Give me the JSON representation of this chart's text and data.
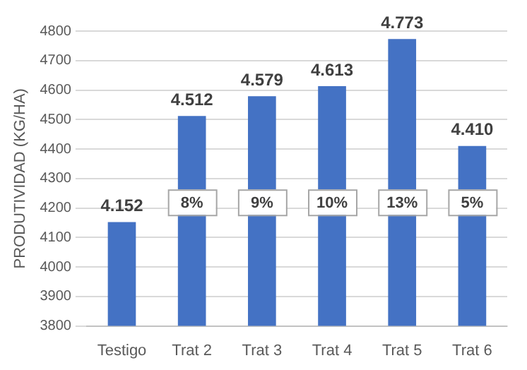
{
  "chart_data": {
    "type": "bar",
    "ylabel": "PRODUTIVIDAD (KG/HA)",
    "categories": [
      "Testigo",
      "Trat 2",
      "Trat 3",
      "Trat 4",
      "Trat 5",
      "Trat 6"
    ],
    "values": [
      4152,
      4512,
      4579,
      4613,
      4773,
      4410
    ],
    "value_labels": [
      "4.152",
      "4.512",
      "4.579",
      "4.613",
      "4.773",
      "4.410"
    ],
    "color": "#4472c4",
    "ylim": [
      3800,
      4800
    ],
    "yticks": [
      3800,
      3900,
      4000,
      4100,
      4200,
      4300,
      4400,
      4500,
      4600,
      4700,
      4800
    ],
    "grid": "y",
    "legend": false,
    "annotations": [
      {
        "text": "8%",
        "x": "Trat 2",
        "y": 4220
      },
      {
        "text": "9%",
        "x": "Trat 3",
        "y": 4220
      },
      {
        "text": "10%",
        "x": "Trat 4",
        "y": 4220
      },
      {
        "text": "13%",
        "x": "Trat 5",
        "y": 4220
      },
      {
        "text": "5%",
        "x": "Trat 6",
        "y": 4220
      }
    ]
  }
}
